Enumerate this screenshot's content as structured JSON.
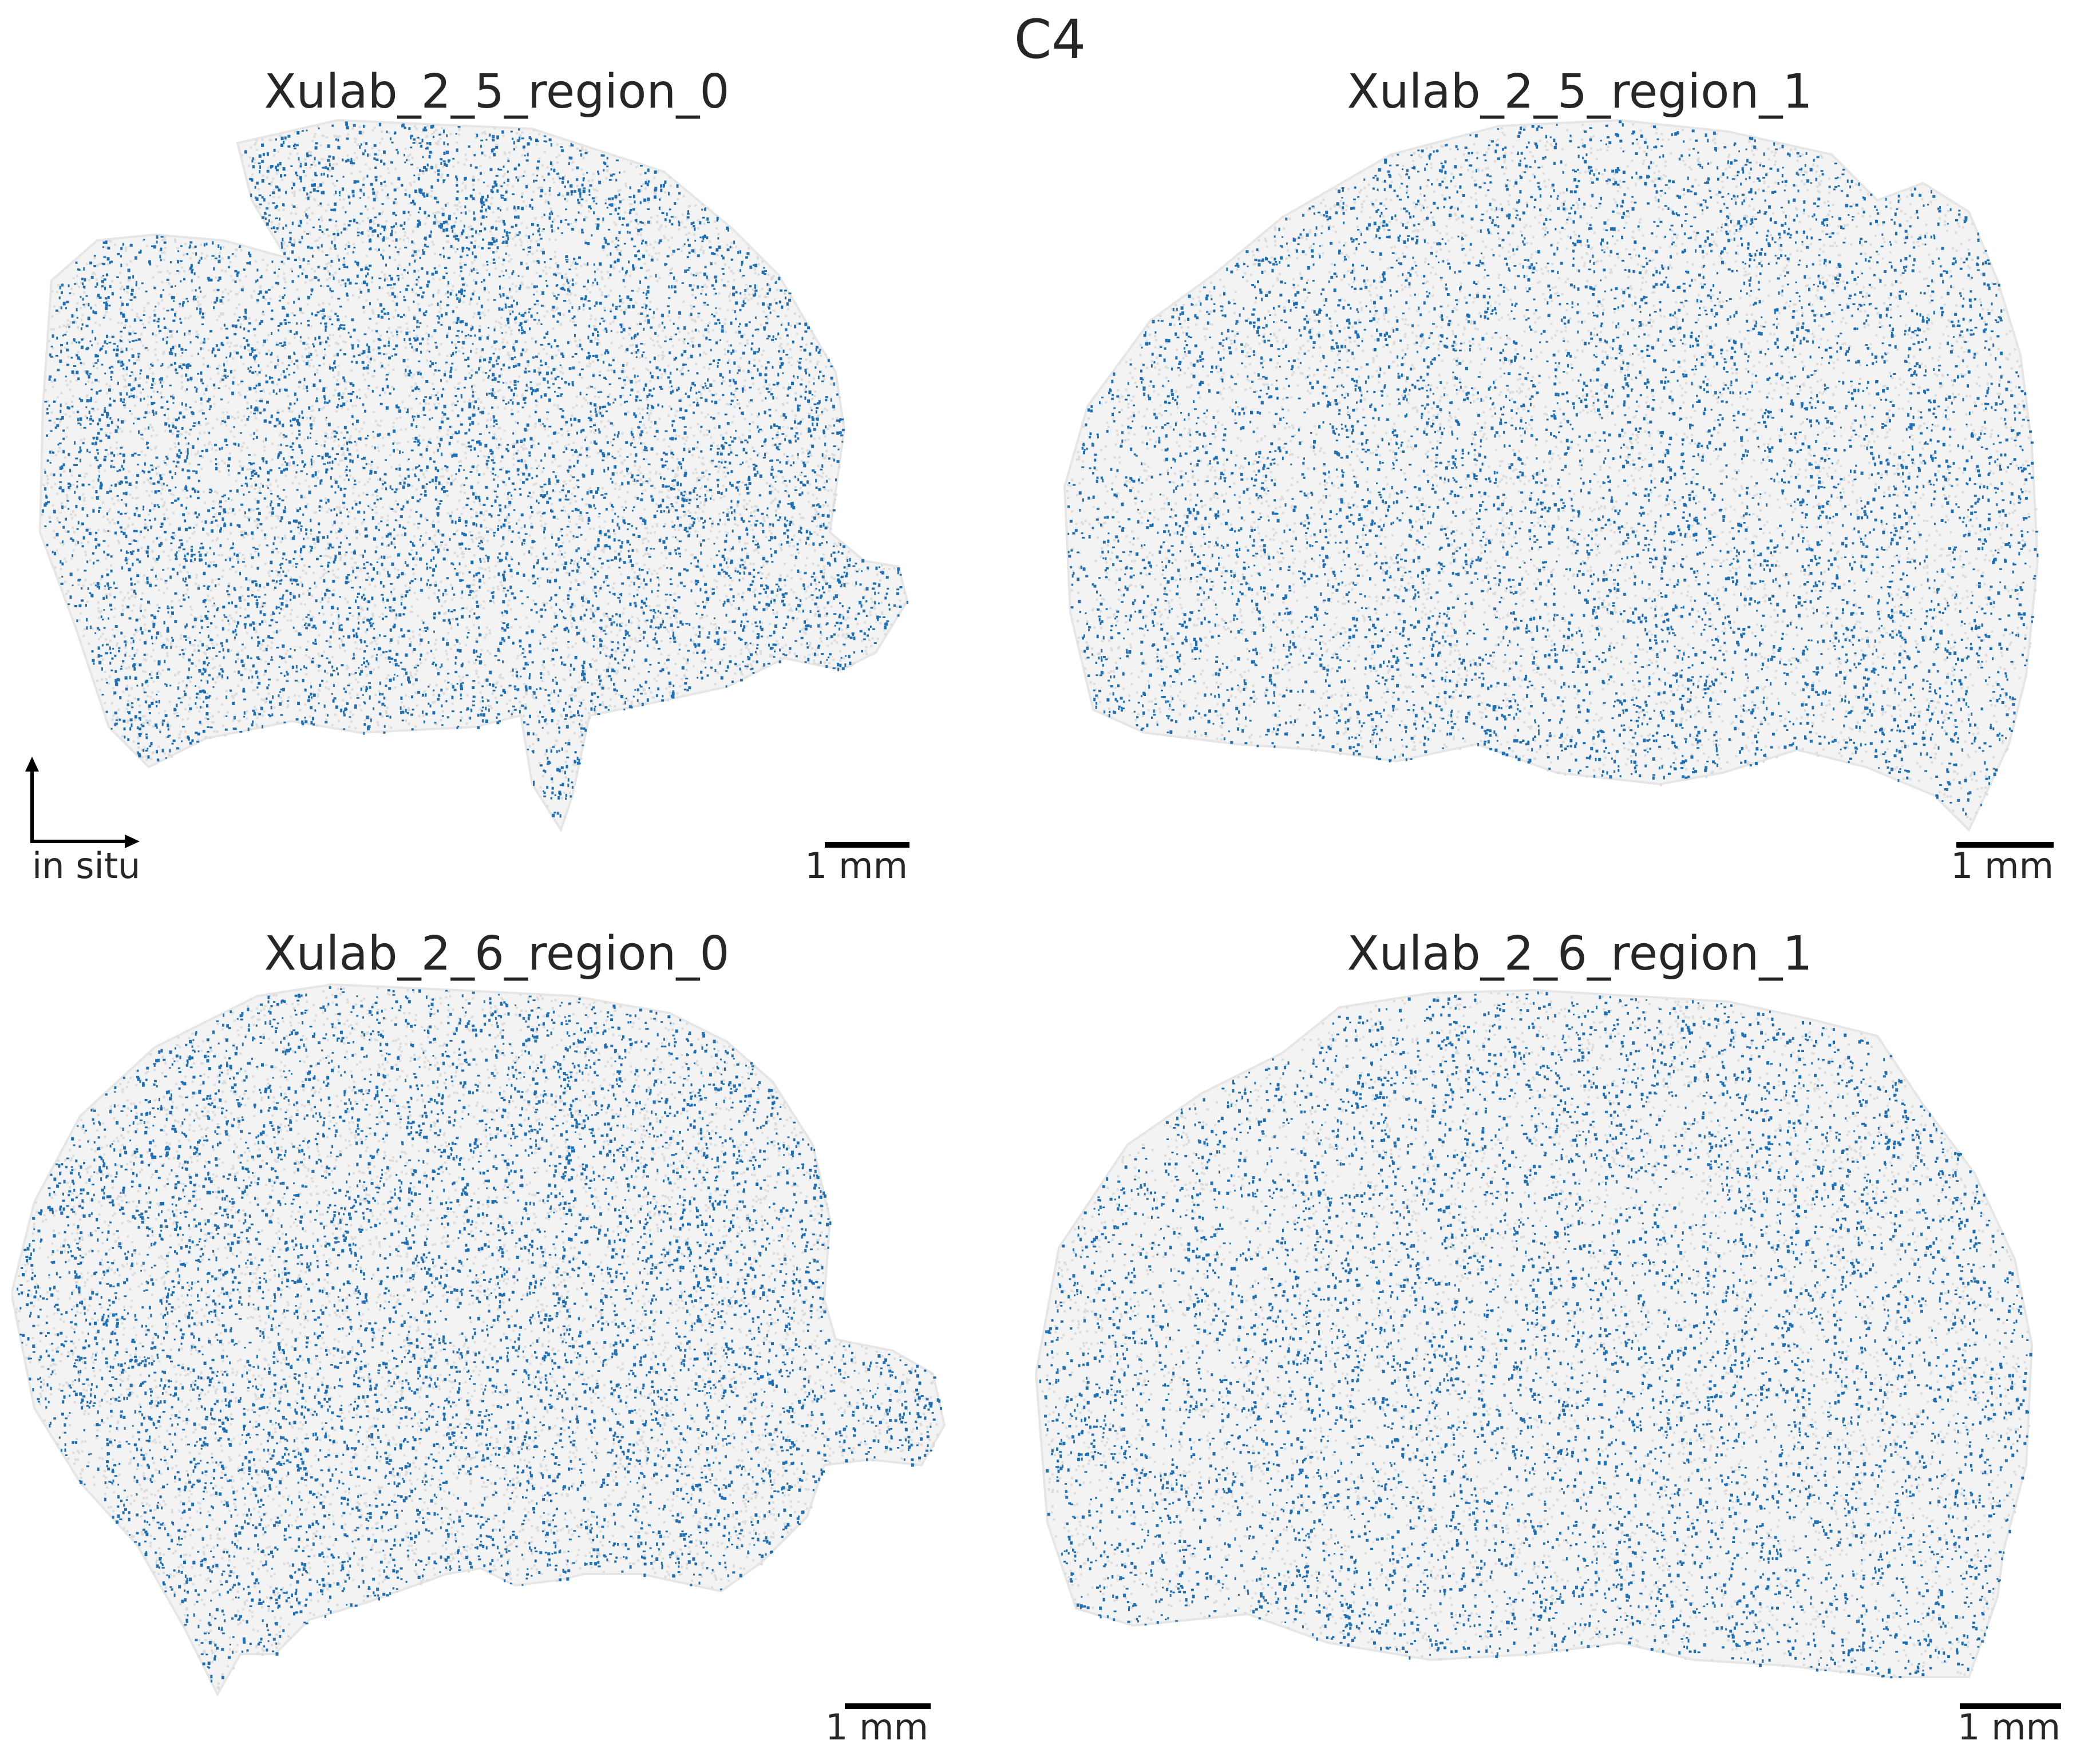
{
  "figure": {
    "title": "C4",
    "panels": [
      {
        "title": "Xulab_2_5_region_0",
        "scalebar_label": "1 mm"
      },
      {
        "title": "Xulab_2_5_region_1",
        "scalebar_label": "1 mm"
      },
      {
        "title": "Xulab_2_6_region_0",
        "scalebar_label": "1 mm"
      },
      {
        "title": "Xulab_2_6_region_1",
        "scalebar_label": "1 mm"
      }
    ],
    "axis_label": "in situ",
    "colors": {
      "expressing_cells": "#1f6fb4",
      "background_cells": "#e6e6e6",
      "text": "#262626",
      "scalebar": "#000000"
    }
  }
}
